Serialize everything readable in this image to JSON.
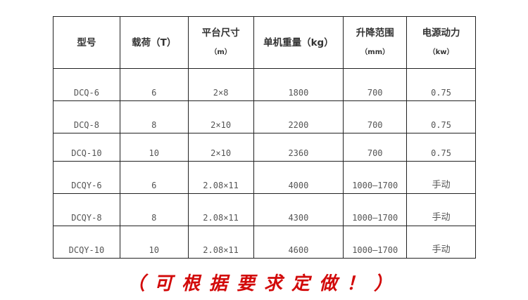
{
  "table": {
    "headers": [
      {
        "label": "型号",
        "unit": ""
      },
      {
        "label": "载荷（T）",
        "unit": ""
      },
      {
        "label": "平台尺寸",
        "unit": "（m）"
      },
      {
        "label": "单机重量（kg）",
        "unit": ""
      },
      {
        "label": "升降范围",
        "unit": "（mm）"
      },
      {
        "label": "电源动力",
        "unit": "（kw）"
      }
    ],
    "rows": [
      [
        "DCQ-6",
        "6",
        "2×8",
        "1800",
        "700",
        "0.75"
      ],
      [
        "DCQ-8",
        "8",
        "2×10",
        "2200",
        "700",
        "0.75"
      ],
      [
        "DCQ-10",
        "10",
        "2×10",
        "2360",
        "700",
        "0.75"
      ],
      [
        "DCQY-6",
        "6",
        "2.08×11",
        "4000",
        "1000—1700",
        "手动"
      ],
      [
        "DCQY-8",
        "8",
        "2.08×11",
        "4300",
        "1000—1700",
        "手动"
      ],
      [
        "DCQY-10",
        "10",
        "2.08×11",
        "4600",
        "1000—1700",
        "手动"
      ]
    ]
  },
  "note": "（可根据要求定做！）",
  "colors": {
    "note": "#d20a0a",
    "border": "#222222"
  }
}
